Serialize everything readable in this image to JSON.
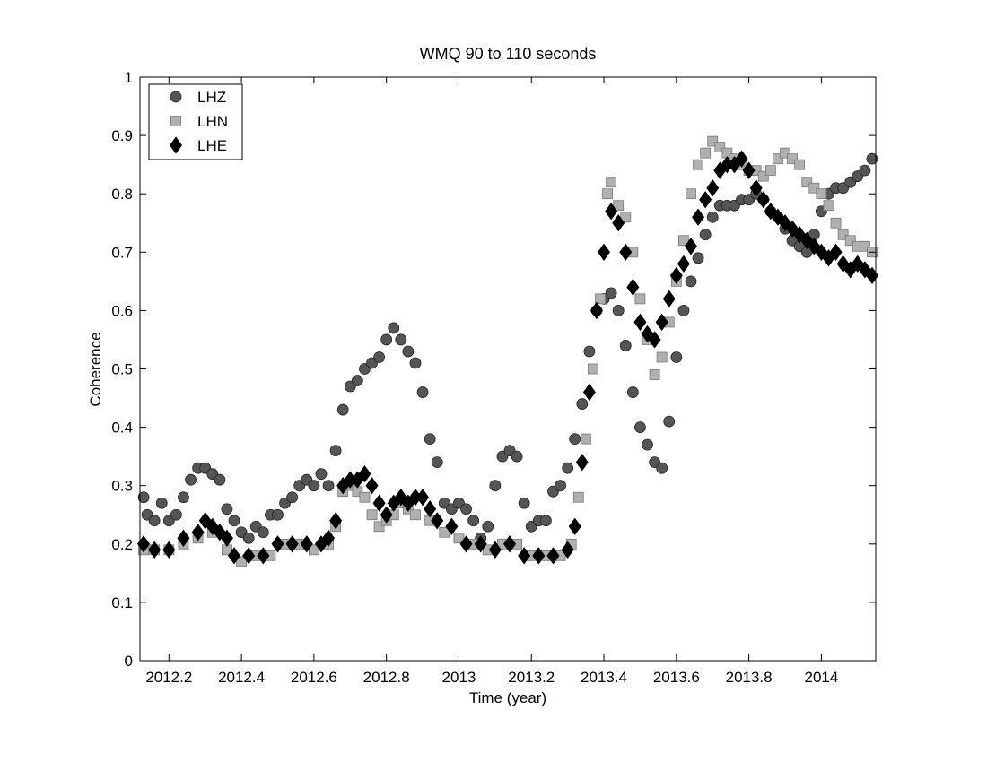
{
  "chart_data": {
    "type": "scatter",
    "title": "WMQ 90 to 110 seconds",
    "xlabel": "Time (year)",
    "ylabel": "Coherence",
    "xlim": [
      2012.12,
      2014.15
    ],
    "ylim": [
      0,
      1
    ],
    "x_ticks": [
      2012.2,
      2012.4,
      2012.6,
      2012.8,
      2013.0,
      2013.2,
      2013.4,
      2013.6,
      2013.8,
      2014.0
    ],
    "x_tick_labels": [
      "2012.2",
      "2012.4",
      "2012.6",
      "2012.8",
      "2013",
      "2013.2",
      "2013.4",
      "2013.6",
      "2013.8",
      "2014"
    ],
    "y_ticks": [
      0,
      0.1,
      0.2,
      0.3,
      0.4,
      0.5,
      0.6,
      0.7,
      0.8,
      0.9,
      1
    ],
    "y_tick_labels": [
      "0",
      "0.1",
      "0.2",
      "0.3",
      "0.4",
      "0.5",
      "0.6",
      "0.7",
      "0.8",
      "0.9",
      "1"
    ],
    "grid": false,
    "legend_position": "top-left",
    "series": [
      {
        "name": "LHZ",
        "marker": "circle",
        "color": "#555555",
        "points": [
          [
            2012.13,
            0.28
          ],
          [
            2012.14,
            0.25
          ],
          [
            2012.16,
            0.24
          ],
          [
            2012.18,
            0.27
          ],
          [
            2012.2,
            0.24
          ],
          [
            2012.22,
            0.25
          ],
          [
            2012.24,
            0.28
          ],
          [
            2012.26,
            0.31
          ],
          [
            2012.28,
            0.33
          ],
          [
            2012.3,
            0.33
          ],
          [
            2012.32,
            0.32
          ],
          [
            2012.34,
            0.31
          ],
          [
            2012.36,
            0.26
          ],
          [
            2012.38,
            0.24
          ],
          [
            2012.4,
            0.22
          ],
          [
            2012.42,
            0.21
          ],
          [
            2012.44,
            0.23
          ],
          [
            2012.46,
            0.22
          ],
          [
            2012.48,
            0.25
          ],
          [
            2012.5,
            0.25
          ],
          [
            2012.52,
            0.27
          ],
          [
            2012.54,
            0.28
          ],
          [
            2012.56,
            0.3
          ],
          [
            2012.58,
            0.31
          ],
          [
            2012.6,
            0.3
          ],
          [
            2012.62,
            0.32
          ],
          [
            2012.64,
            0.3
          ],
          [
            2012.66,
            0.36
          ],
          [
            2012.68,
            0.43
          ],
          [
            2012.7,
            0.47
          ],
          [
            2012.72,
            0.48
          ],
          [
            2012.74,
            0.5
          ],
          [
            2012.76,
            0.51
          ],
          [
            2012.78,
            0.52
          ],
          [
            2012.8,
            0.55
          ],
          [
            2012.82,
            0.57
          ],
          [
            2012.84,
            0.55
          ],
          [
            2012.86,
            0.53
          ],
          [
            2012.88,
            0.51
          ],
          [
            2012.9,
            0.46
          ],
          [
            2012.92,
            0.38
          ],
          [
            2012.94,
            0.34
          ],
          [
            2012.96,
            0.27
          ],
          [
            2012.98,
            0.26
          ],
          [
            2013.0,
            0.27
          ],
          [
            2013.02,
            0.26
          ],
          [
            2013.04,
            0.24
          ],
          [
            2013.06,
            0.21
          ],
          [
            2013.08,
            0.23
          ],
          [
            2013.1,
            0.3
          ],
          [
            2013.12,
            0.35
          ],
          [
            2013.14,
            0.36
          ],
          [
            2013.16,
            0.35
          ],
          [
            2013.18,
            0.27
          ],
          [
            2013.2,
            0.23
          ],
          [
            2013.22,
            0.24
          ],
          [
            2013.24,
            0.24
          ],
          [
            2013.26,
            0.29
          ],
          [
            2013.28,
            0.3
          ],
          [
            2013.3,
            0.33
          ],
          [
            2013.32,
            0.38
          ],
          [
            2013.34,
            0.44
          ],
          [
            2013.36,
            0.53
          ],
          [
            2013.38,
            0.6
          ],
          [
            2013.4,
            0.62
          ],
          [
            2013.42,
            0.63
          ],
          [
            2013.44,
            0.6
          ],
          [
            2013.46,
            0.54
          ],
          [
            2013.48,
            0.46
          ],
          [
            2013.5,
            0.4
          ],
          [
            2013.52,
            0.37
          ],
          [
            2013.54,
            0.34
          ],
          [
            2013.56,
            0.33
          ],
          [
            2013.58,
            0.41
          ],
          [
            2013.6,
            0.52
          ],
          [
            2013.62,
            0.6
          ],
          [
            2013.64,
            0.65
          ],
          [
            2013.66,
            0.69
          ],
          [
            2013.68,
            0.73
          ],
          [
            2013.7,
            0.76
          ],
          [
            2013.72,
            0.78
          ],
          [
            2013.74,
            0.78
          ],
          [
            2013.76,
            0.78
          ],
          [
            2013.78,
            0.79
          ],
          [
            2013.8,
            0.79
          ],
          [
            2013.82,
            0.8
          ],
          [
            2013.84,
            0.79
          ],
          [
            2013.86,
            0.77
          ],
          [
            2013.88,
            0.76
          ],
          [
            2013.9,
            0.74
          ],
          [
            2013.92,
            0.72
          ],
          [
            2013.94,
            0.71
          ],
          [
            2013.96,
            0.7
          ],
          [
            2013.98,
            0.73
          ],
          [
            2014.0,
            0.77
          ],
          [
            2014.02,
            0.8
          ],
          [
            2014.04,
            0.81
          ],
          [
            2014.06,
            0.81
          ],
          [
            2014.08,
            0.82
          ],
          [
            2014.1,
            0.83
          ],
          [
            2014.12,
            0.84
          ],
          [
            2014.14,
            0.86
          ]
        ]
      },
      {
        "name": "LHN",
        "marker": "square",
        "color": "#b0b0b0",
        "points": [
          [
            2012.13,
            0.19
          ],
          [
            2012.16,
            0.19
          ],
          [
            2012.2,
            0.19
          ],
          [
            2012.24,
            0.2
          ],
          [
            2012.28,
            0.21
          ],
          [
            2012.32,
            0.22
          ],
          [
            2012.36,
            0.19
          ],
          [
            2012.4,
            0.17
          ],
          [
            2012.44,
            0.18
          ],
          [
            2012.48,
            0.18
          ],
          [
            2012.52,
            0.2
          ],
          [
            2012.56,
            0.2
          ],
          [
            2012.6,
            0.19
          ],
          [
            2012.64,
            0.2
          ],
          [
            2012.66,
            0.23
          ],
          [
            2012.68,
            0.29
          ],
          [
            2012.7,
            0.3
          ],
          [
            2012.72,
            0.29
          ],
          [
            2012.74,
            0.28
          ],
          [
            2012.76,
            0.25
          ],
          [
            2012.78,
            0.23
          ],
          [
            2012.8,
            0.24
          ],
          [
            2012.82,
            0.25
          ],
          [
            2012.84,
            0.27
          ],
          [
            2012.86,
            0.26
          ],
          [
            2012.88,
            0.25
          ],
          [
            2012.92,
            0.24
          ],
          [
            2012.96,
            0.22
          ],
          [
            2013.0,
            0.21
          ],
          [
            2013.04,
            0.2
          ],
          [
            2013.08,
            0.19
          ],
          [
            2013.12,
            0.2
          ],
          [
            2013.16,
            0.2
          ],
          [
            2013.2,
            0.18
          ],
          [
            2013.24,
            0.18
          ],
          [
            2013.28,
            0.18
          ],
          [
            2013.31,
            0.2
          ],
          [
            2013.33,
            0.28
          ],
          [
            2013.35,
            0.38
          ],
          [
            2013.37,
            0.5
          ],
          [
            2013.39,
            0.62
          ],
          [
            2013.41,
            0.8
          ],
          [
            2013.42,
            0.82
          ],
          [
            2013.44,
            0.78
          ],
          [
            2013.46,
            0.76
          ],
          [
            2013.48,
            0.7
          ],
          [
            2013.5,
            0.62
          ],
          [
            2013.52,
            0.55
          ],
          [
            2013.54,
            0.49
          ],
          [
            2013.56,
            0.52
          ],
          [
            2013.58,
            0.58
          ],
          [
            2013.6,
            0.65
          ],
          [
            2013.62,
            0.72
          ],
          [
            2013.64,
            0.8
          ],
          [
            2013.66,
            0.85
          ],
          [
            2013.68,
            0.87
          ],
          [
            2013.7,
            0.89
          ],
          [
            2013.72,
            0.88
          ],
          [
            2013.74,
            0.87
          ],
          [
            2013.76,
            0.86
          ],
          [
            2013.78,
            0.85
          ],
          [
            2013.8,
            0.84
          ],
          [
            2013.82,
            0.84
          ],
          [
            2013.84,
            0.83
          ],
          [
            2013.86,
            0.84
          ],
          [
            2013.88,
            0.86
          ],
          [
            2013.9,
            0.87
          ],
          [
            2013.92,
            0.86
          ],
          [
            2013.94,
            0.85
          ],
          [
            2013.96,
            0.82
          ],
          [
            2013.98,
            0.81
          ],
          [
            2014.0,
            0.8
          ],
          [
            2014.02,
            0.78
          ],
          [
            2014.04,
            0.75
          ],
          [
            2014.06,
            0.73
          ],
          [
            2014.08,
            0.72
          ],
          [
            2014.1,
            0.71
          ],
          [
            2014.12,
            0.71
          ],
          [
            2014.14,
            0.7
          ]
        ]
      },
      {
        "name": "LHE",
        "marker": "diamond",
        "color": "#000000",
        "points": [
          [
            2012.13,
            0.2
          ],
          [
            2012.16,
            0.19
          ],
          [
            2012.2,
            0.19
          ],
          [
            2012.24,
            0.21
          ],
          [
            2012.28,
            0.22
          ],
          [
            2012.3,
            0.24
          ],
          [
            2012.32,
            0.23
          ],
          [
            2012.34,
            0.22
          ],
          [
            2012.36,
            0.21
          ],
          [
            2012.38,
            0.18
          ],
          [
            2012.42,
            0.18
          ],
          [
            2012.46,
            0.18
          ],
          [
            2012.5,
            0.2
          ],
          [
            2012.54,
            0.2
          ],
          [
            2012.58,
            0.2
          ],
          [
            2012.62,
            0.2
          ],
          [
            2012.64,
            0.21
          ],
          [
            2012.66,
            0.24
          ],
          [
            2012.68,
            0.3
          ],
          [
            2012.7,
            0.31
          ],
          [
            2012.72,
            0.31
          ],
          [
            2012.74,
            0.32
          ],
          [
            2012.76,
            0.3
          ],
          [
            2012.78,
            0.27
          ],
          [
            2012.8,
            0.25
          ],
          [
            2012.82,
            0.27
          ],
          [
            2012.84,
            0.28
          ],
          [
            2012.86,
            0.27
          ],
          [
            2012.88,
            0.28
          ],
          [
            2012.9,
            0.28
          ],
          [
            2012.92,
            0.26
          ],
          [
            2012.94,
            0.24
          ],
          [
            2012.98,
            0.23
          ],
          [
            2013.02,
            0.2
          ],
          [
            2013.06,
            0.2
          ],
          [
            2013.1,
            0.19
          ],
          [
            2013.14,
            0.2
          ],
          [
            2013.18,
            0.18
          ],
          [
            2013.22,
            0.18
          ],
          [
            2013.26,
            0.18
          ],
          [
            2013.3,
            0.19
          ],
          [
            2013.32,
            0.23
          ],
          [
            2013.34,
            0.34
          ],
          [
            2013.36,
            0.46
          ],
          [
            2013.38,
            0.6
          ],
          [
            2013.4,
            0.7
          ],
          [
            2013.42,
            0.77
          ],
          [
            2013.44,
            0.75
          ],
          [
            2013.46,
            0.7
          ],
          [
            2013.48,
            0.64
          ],
          [
            2013.5,
            0.58
          ],
          [
            2013.52,
            0.56
          ],
          [
            2013.54,
            0.55
          ],
          [
            2013.56,
            0.58
          ],
          [
            2013.58,
            0.62
          ],
          [
            2013.6,
            0.66
          ],
          [
            2013.62,
            0.68
          ],
          [
            2013.64,
            0.71
          ],
          [
            2013.66,
            0.76
          ],
          [
            2013.68,
            0.79
          ],
          [
            2013.7,
            0.81
          ],
          [
            2013.72,
            0.84
          ],
          [
            2013.74,
            0.85
          ],
          [
            2013.76,
            0.85
          ],
          [
            2013.78,
            0.86
          ],
          [
            2013.8,
            0.84
          ],
          [
            2013.82,
            0.81
          ],
          [
            2013.84,
            0.79
          ],
          [
            2013.86,
            0.77
          ],
          [
            2013.88,
            0.76
          ],
          [
            2013.9,
            0.75
          ],
          [
            2013.92,
            0.74
          ],
          [
            2013.94,
            0.73
          ],
          [
            2013.96,
            0.72
          ],
          [
            2013.98,
            0.71
          ],
          [
            2014.0,
            0.7
          ],
          [
            2014.02,
            0.69
          ],
          [
            2014.04,
            0.7
          ],
          [
            2014.06,
            0.68
          ],
          [
            2014.08,
            0.67
          ],
          [
            2014.1,
            0.68
          ],
          [
            2014.12,
            0.67
          ],
          [
            2014.14,
            0.66
          ]
        ]
      }
    ]
  }
}
